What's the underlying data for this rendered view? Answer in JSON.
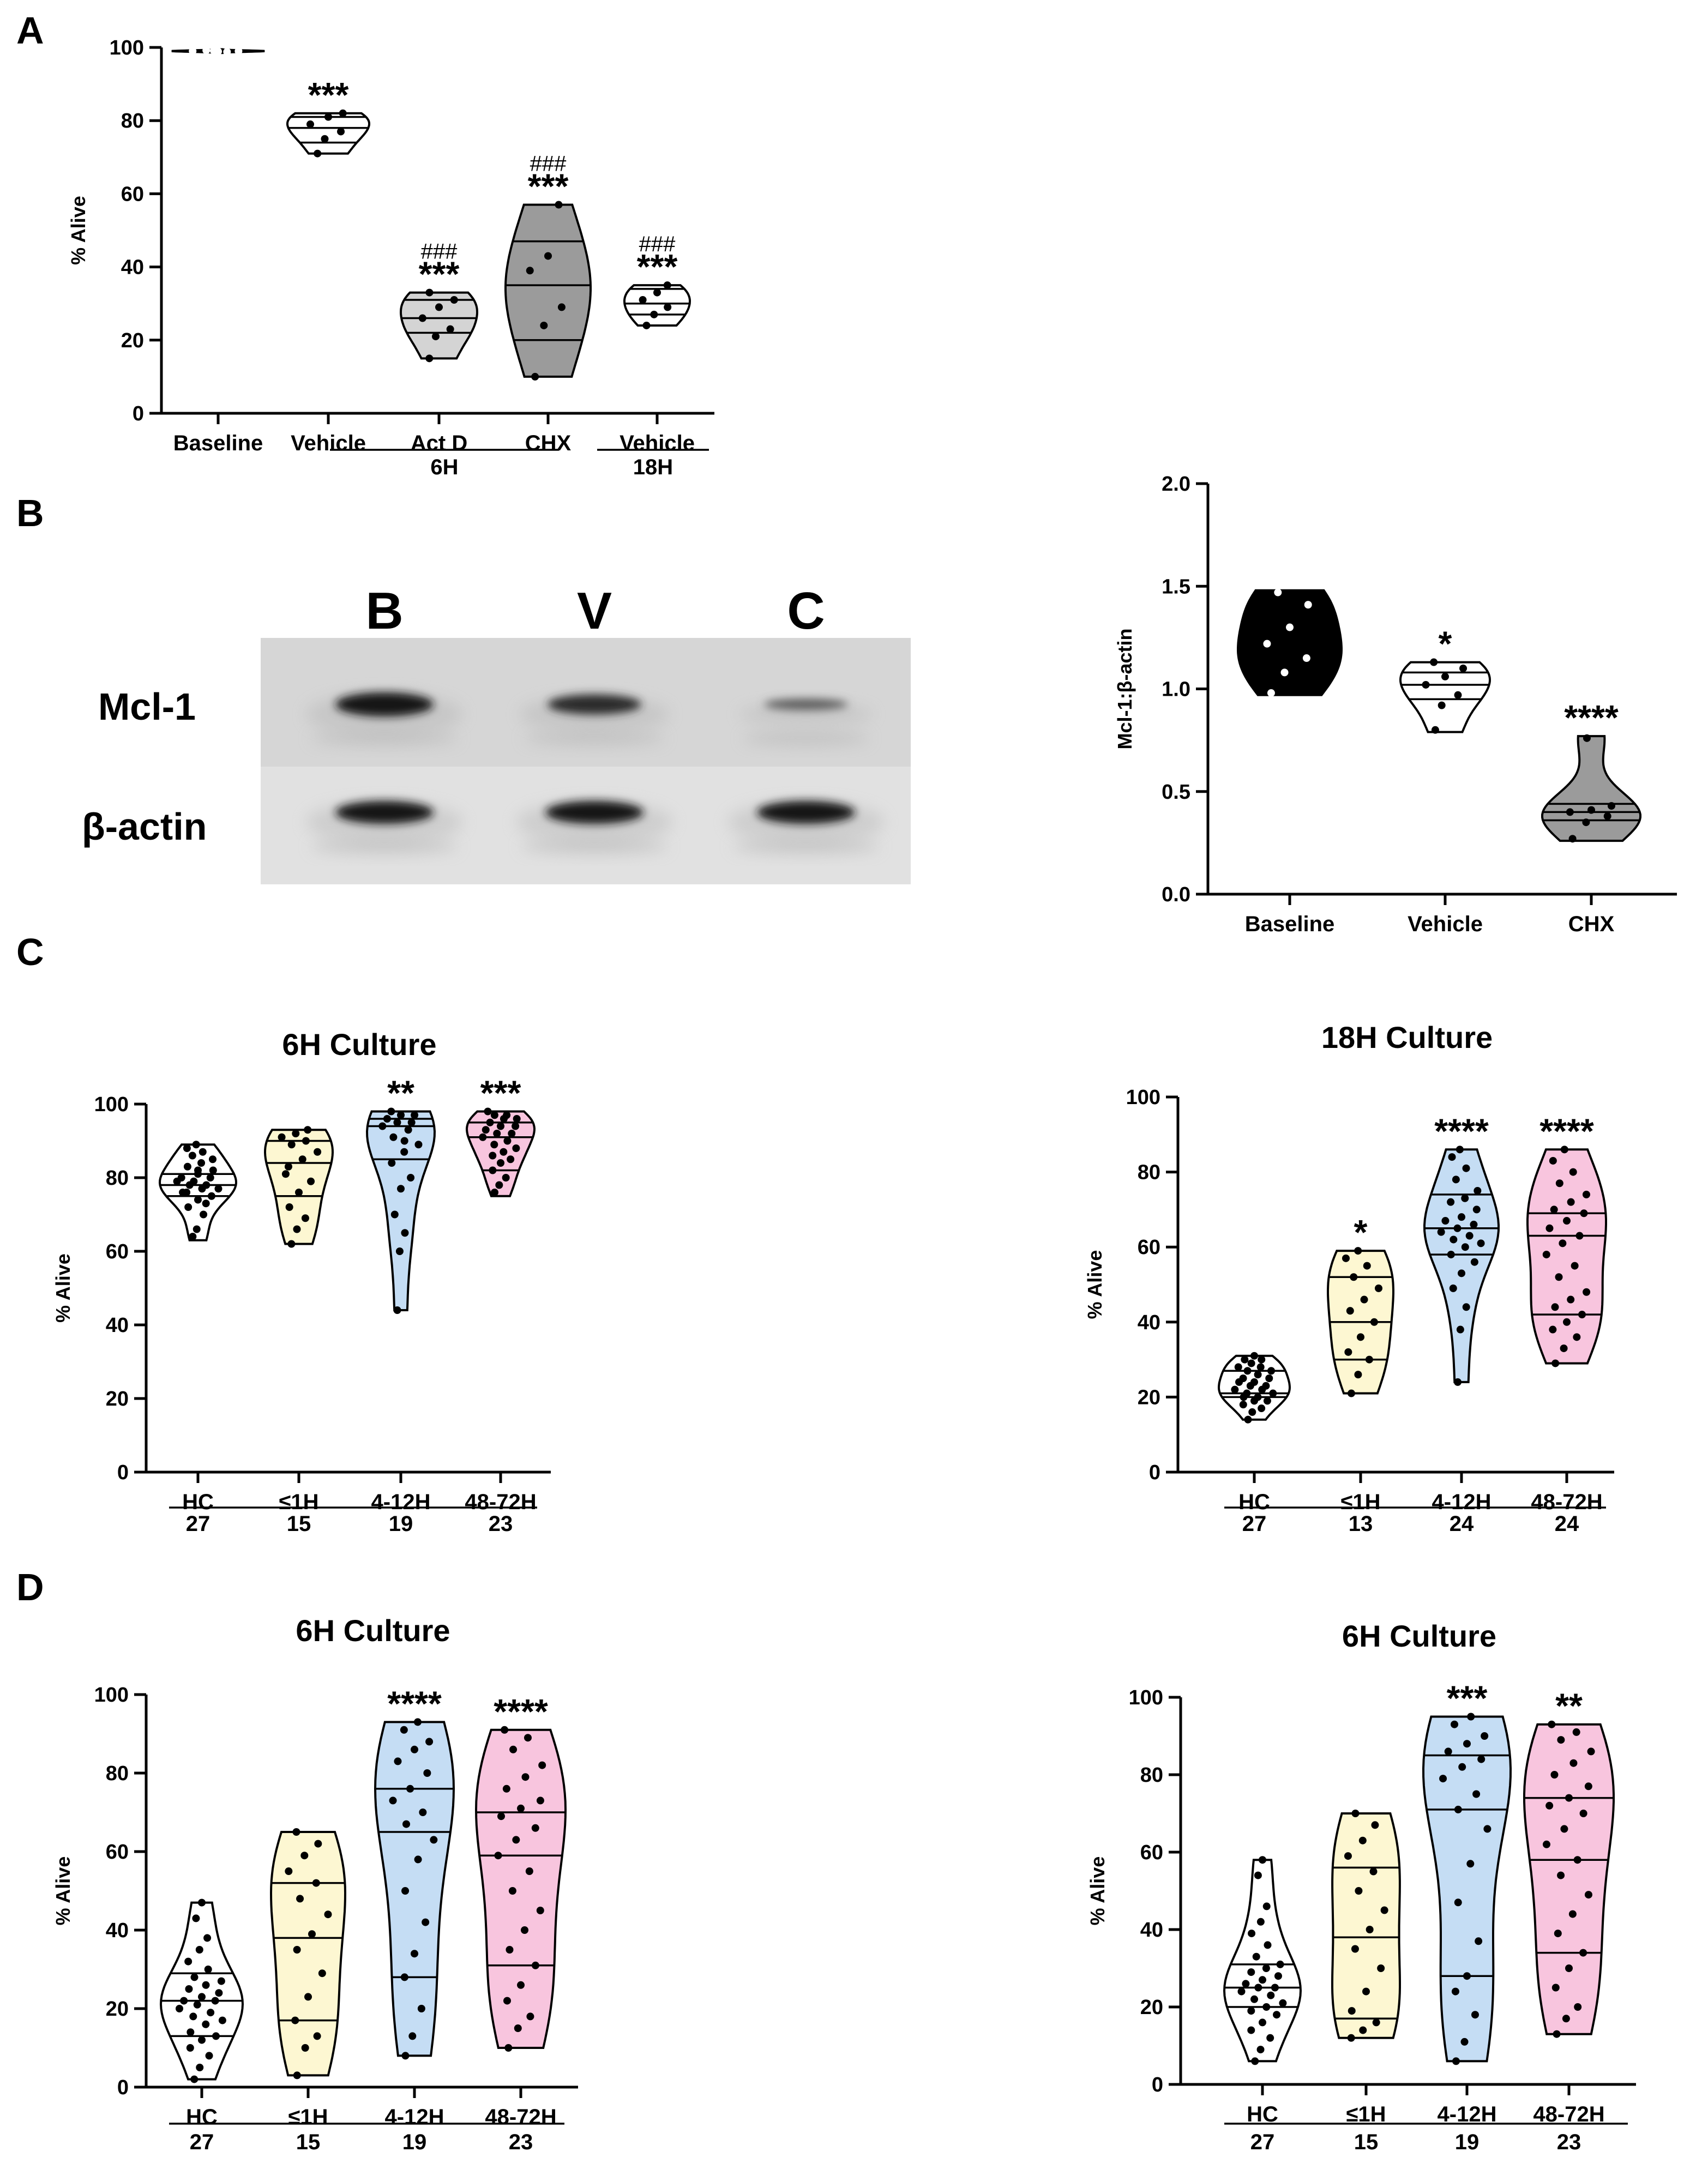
{
  "panels": {
    "a": "A",
    "b": "B",
    "c": "C",
    "d": "D"
  },
  "blot": {
    "lanes": [
      "B",
      "V",
      "C"
    ],
    "rows": [
      {
        "label": "Mcl-1",
        "intensity": [
          1.0,
          0.8,
          0.35
        ]
      },
      {
        "label": "β-actin",
        "intensity": [
          1.0,
          1.0,
          1.0
        ]
      }
    ]
  },
  "chart_data": [
    {
      "id": "A",
      "type": "violin",
      "title": "",
      "ylabel": "% Alive",
      "ylim": [
        0,
        100
      ],
      "yticks": [
        "0",
        "20",
        "40",
        "60",
        "80",
        "100"
      ],
      "categories": [
        "Baseline",
        "Vehicle",
        "Act D",
        "CHX",
        "Vehicle"
      ],
      "groups": [
        {
          "label": "6H",
          "from": 1,
          "to": 3
        },
        {
          "label": "18H",
          "from": 4,
          "to": 4
        }
      ],
      "colors": [
        "#000000",
        "#ffffff",
        "#d4d4d4",
        "#9b9b9b",
        "#ffffff"
      ],
      "annotations": [
        "",
        "***",
        "***",
        "***",
        "***"
      ],
      "hash_annotations": [
        "",
        "",
        "###",
        "###",
        "###"
      ],
      "series": [
        {
          "name": "Baseline",
          "min": 98.5,
          "max": 99.5,
          "quartiles": [
            98.8,
            99,
            99.2
          ],
          "points": [
            99,
            99.1,
            98.8,
            99.2,
            98.9,
            99
          ]
        },
        {
          "name": "Vehicle",
          "min": 71,
          "max": 82,
          "quartiles": [
            74,
            78,
            81
          ],
          "points": [
            71,
            75,
            77,
            79,
            81,
            82
          ]
        },
        {
          "name": "Act D",
          "min": 15,
          "max": 33,
          "quartiles": [
            22,
            26,
            31
          ],
          "points": [
            15,
            21,
            23,
            26,
            29,
            31,
            33
          ]
        },
        {
          "name": "CHX",
          "min": 10,
          "max": 57,
          "quartiles": [
            20,
            35,
            47
          ],
          "points": [
            10,
            24,
            29,
            39,
            43,
            57
          ]
        },
        {
          "name": "Vehicle",
          "min": 24,
          "max": 35,
          "quartiles": [
            27,
            30,
            34
          ],
          "points": [
            24,
            27,
            29,
            31,
            33,
            35
          ]
        }
      ]
    },
    {
      "id": "B",
      "type": "violin",
      "title": "",
      "ylabel": "Mcl-1:β-actin",
      "ylim": [
        0,
        2
      ],
      "yticks": [
        "0.0",
        "0.5",
        "1.0",
        "1.5",
        "2.0"
      ],
      "categories": [
        "Baseline",
        "Vehicle",
        "CHX"
      ],
      "colors": [
        "#000000",
        "#ffffff",
        "#9b9b9b"
      ],
      "annotations": [
        "",
        "*",
        "****"
      ],
      "series": [
        {
          "name": "Baseline",
          "min": 0.97,
          "max": 1.48,
          "quartiles": [
            1.07,
            1.2,
            1.41
          ],
          "points": [
            0.98,
            1.08,
            1.15,
            1.22,
            1.3,
            1.41,
            1.47
          ]
        },
        {
          "name": "Vehicle",
          "min": 0.79,
          "max": 1.13,
          "quartiles": [
            0.95,
            1.02,
            1.08
          ],
          "points": [
            0.8,
            0.92,
            0.97,
            1.02,
            1.06,
            1.1,
            1.13
          ]
        },
        {
          "name": "CHX",
          "min": 0.26,
          "max": 0.77,
          "quartiles": [
            0.36,
            0.4,
            0.44
          ],
          "points": [
            0.27,
            0.35,
            0.38,
            0.4,
            0.41,
            0.43,
            0.76
          ]
        }
      ]
    },
    {
      "id": "C-left",
      "type": "violin",
      "title": "6H Culture",
      "ylabel": "% Alive",
      "ylim": [
        0,
        100
      ],
      "yticks": [
        "0",
        "20",
        "40",
        "60",
        "80",
        "100"
      ],
      "categories": [
        "HC",
        "≤1H",
        "4-12H",
        "48-72H"
      ],
      "n": [
        "27",
        "15",
        "19",
        "23"
      ],
      "colors": [
        "#ffffff",
        "#fdf7d2",
        "#c5ddf4",
        "#f8c5de"
      ],
      "annotations": [
        "",
        "",
        "**",
        "***"
      ],
      "series": [
        {
          "name": "HC",
          "min": 63,
          "max": 89,
          "quartiles": [
            75,
            78,
            81
          ],
          "points": [
            64,
            66,
            70,
            72,
            74,
            75,
            76,
            77,
            77,
            78,
            78,
            79,
            79,
            80,
            80,
            81,
            82,
            83,
            84,
            85,
            86,
            87,
            88,
            89,
            73,
            76,
            82
          ]
        },
        {
          "name": "≤1H",
          "min": 62,
          "max": 93,
          "quartiles": [
            75,
            84,
            90
          ],
          "points": [
            62,
            66,
            69,
            72,
            76,
            79,
            83,
            85,
            87,
            89,
            90,
            91,
            92,
            93,
            81
          ]
        },
        {
          "name": "4-12H",
          "min": 44,
          "max": 98,
          "quartiles": [
            85,
            94,
            96
          ],
          "points": [
            44,
            60,
            65,
            70,
            77,
            80,
            84,
            87,
            89,
            91,
            93,
            94,
            95,
            95,
            96,
            97,
            97,
            98,
            90
          ]
        },
        {
          "name": "48-72H",
          "min": 75,
          "max": 98,
          "quartiles": [
            82,
            91,
            95
          ],
          "points": [
            76,
            78,
            80,
            82,
            84,
            85,
            86,
            87,
            88,
            89,
            90,
            91,
            92,
            92,
            93,
            94,
            94,
            95,
            96,
            96,
            97,
            97,
            98
          ]
        }
      ]
    },
    {
      "id": "C-right",
      "type": "violin",
      "title": "18H Culture",
      "ylabel": "% Alive",
      "ylim": [
        0,
        100
      ],
      "yticks": [
        "0",
        "20",
        "40",
        "60",
        "80",
        "100"
      ],
      "categories": [
        "HC",
        "≤1H",
        "4-12H",
        "48-72H"
      ],
      "n": [
        "27",
        "13",
        "24",
        "24"
      ],
      "colors": [
        "#ffffff",
        "#fdf7d2",
        "#c5ddf4",
        "#f8c5de"
      ],
      "annotations": [
        "",
        "*",
        "****",
        "****"
      ],
      "series": [
        {
          "name": "HC",
          "min": 14,
          "max": 31,
          "quartiles": [
            20,
            21,
            27
          ],
          "points": [
            14,
            16,
            17,
            18,
            19,
            19,
            20,
            20,
            21,
            21,
            22,
            22,
            23,
            23,
            24,
            24,
            25,
            25,
            26,
            27,
            27,
            28,
            28,
            29,
            30,
            30,
            31
          ]
        },
        {
          "name": "≤1H",
          "min": 21,
          "max": 59,
          "quartiles": [
            30,
            40,
            52
          ],
          "points": [
            21,
            26,
            30,
            32,
            36,
            40,
            43,
            46,
            49,
            52,
            55,
            57,
            59
          ]
        },
        {
          "name": "4-12H",
          "min": 24,
          "max": 86,
          "quartiles": [
            58,
            65,
            74
          ],
          "points": [
            24,
            38,
            44,
            49,
            53,
            56,
            58,
            60,
            61,
            62,
            63,
            64,
            65,
            66,
            67,
            68,
            70,
            72,
            73,
            75,
            78,
            81,
            84,
            86
          ]
        },
        {
          "name": "48-72H",
          "min": 29,
          "max": 86,
          "quartiles": [
            42,
            63,
            69
          ],
          "points": [
            29,
            33,
            36,
            38,
            40,
            42,
            44,
            46,
            48,
            52,
            55,
            58,
            61,
            63,
            65,
            67,
            69,
            70,
            72,
            74,
            77,
            80,
            83,
            86
          ]
        }
      ]
    },
    {
      "id": "D-left",
      "type": "violin",
      "title": "6H Culture",
      "ylabel": "% Alive",
      "ylim": [
        0,
        100
      ],
      "yticks": [
        "0",
        "20",
        "40",
        "60",
        "80",
        "100"
      ],
      "categories": [
        "HC",
        "≤1H",
        "4-12H",
        "48-72H"
      ],
      "n": [
        "27",
        "15",
        "19",
        "23"
      ],
      "colors": [
        "#ffffff",
        "#fdf7d2",
        "#c5ddf4",
        "#f8c5de"
      ],
      "annotations": [
        "",
        "",
        "****",
        "****"
      ],
      "series": [
        {
          "name": "HC",
          "min": 2,
          "max": 47,
          "quartiles": [
            13,
            22,
            29
          ],
          "points": [
            2,
            5,
            8,
            10,
            12,
            13,
            14,
            16,
            17,
            18,
            19,
            20,
            21,
            22,
            22,
            23,
            24,
            25,
            26,
            27,
            28,
            30,
            32,
            35,
            38,
            43,
            47
          ]
        },
        {
          "name": "≤1H",
          "min": 3,
          "max": 65,
          "quartiles": [
            17,
            38,
            52
          ],
          "points": [
            3,
            10,
            13,
            17,
            23,
            29,
            35,
            39,
            44,
            48,
            52,
            55,
            59,
            62,
            65
          ]
        },
        {
          "name": "4-12H",
          "min": 8,
          "max": 93,
          "quartiles": [
            28,
            65,
            76
          ],
          "points": [
            8,
            13,
            20,
            28,
            34,
            42,
            50,
            58,
            63,
            67,
            70,
            73,
            76,
            80,
            83,
            86,
            88,
            91,
            93
          ]
        },
        {
          "name": "48-72H",
          "min": 10,
          "max": 91,
          "quartiles": [
            31,
            59,
            70
          ],
          "points": [
            10,
            15,
            18,
            22,
            26,
            31,
            35,
            40,
            45,
            50,
            55,
            59,
            63,
            66,
            69,
            71,
            73,
            76,
            79,
            82,
            86,
            89,
            91
          ]
        }
      ]
    },
    {
      "id": "D-right",
      "type": "violin",
      "title": "6H Culture",
      "ylabel": "% Alive",
      "ylim": [
        0,
        100
      ],
      "yticks": [
        "0",
        "20",
        "40",
        "60",
        "80",
        "100"
      ],
      "categories": [
        "HC",
        "≤1H",
        "4-12H",
        "48-72H"
      ],
      "n": [
        "27",
        "15",
        "19",
        "23"
      ],
      "colors": [
        "#ffffff",
        "#fdf7d2",
        "#c5ddf4",
        "#f8c5de"
      ],
      "annotations": [
        "",
        "",
        "***",
        "**"
      ],
      "series": [
        {
          "name": "HC",
          "min": 6,
          "max": 58,
          "quartiles": [
            20,
            25,
            31
          ],
          "points": [
            6,
            9,
            12,
            14,
            16,
            18,
            19,
            20,
            21,
            22,
            23,
            24,
            25,
            25,
            26,
            27,
            28,
            29,
            30,
            31,
            33,
            36,
            39,
            42,
            46,
            54,
            58
          ]
        },
        {
          "name": "≤1H",
          "min": 12,
          "max": 70,
          "quartiles": [
            17,
            38,
            56
          ],
          "points": [
            12,
            14,
            16,
            19,
            24,
            30,
            35,
            40,
            45,
            50,
            55,
            59,
            63,
            67,
            70
          ]
        },
        {
          "name": "4-12H",
          "min": 6,
          "max": 95,
          "quartiles": [
            28,
            71,
            85
          ],
          "points": [
            6,
            11,
            18,
            24,
            28,
            37,
            47,
            57,
            66,
            71,
            75,
            79,
            82,
            84,
            86,
            88,
            90,
            93,
            95
          ]
        },
        {
          "name": "48-72H",
          "min": 13,
          "max": 93,
          "quartiles": [
            34,
            58,
            74
          ],
          "points": [
            13,
            17,
            20,
            25,
            30,
            34,
            39,
            44,
            49,
            54,
            58,
            62,
            66,
            70,
            72,
            74,
            77,
            80,
            83,
            86,
            89,
            91,
            93
          ]
        }
      ]
    }
  ]
}
